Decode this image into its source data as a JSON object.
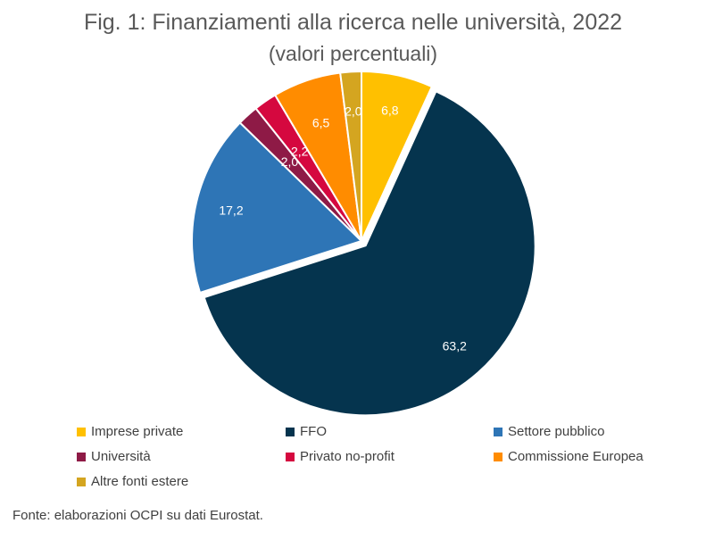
{
  "title": "Fig. 1: Finanziamenti alla ricerca nelle università, 2022",
  "subtitle": "(valori percentuali)",
  "source": "Fonte: elaborazioni OCPI su dati Eurostat.",
  "chart_data": {
    "type": "pie",
    "title": "Fig. 1: Finanziamenti alla ricerca nelle università, 2022",
    "subtitle": "(valori percentuali)",
    "legend_position": "bottom",
    "slices": [
      {
        "name": "Imprese private",
        "value": 6.8,
        "label": "6,8",
        "color": "#FFC000"
      },
      {
        "name": "FFO",
        "value": 63.2,
        "label": "63,2",
        "color": "#05344E"
      },
      {
        "name": "Settore pubblico",
        "value": 17.2,
        "label": "17,2",
        "color": "#2E75B6"
      },
      {
        "name": "Università",
        "value": 2.0,
        "label": "2,0",
        "color": "#8E1A46"
      },
      {
        "name": "Privato no-profit",
        "value": 2.2,
        "label": "2,2",
        "color": "#D5083F"
      },
      {
        "name": "Commissione Europea",
        "value": 6.5,
        "label": "6,5",
        "color": "#FF8C00"
      },
      {
        "name": "Altre fonti estere",
        "value": 2.0,
        "label": "2,0",
        "color": "#D4A520"
      }
    ]
  }
}
